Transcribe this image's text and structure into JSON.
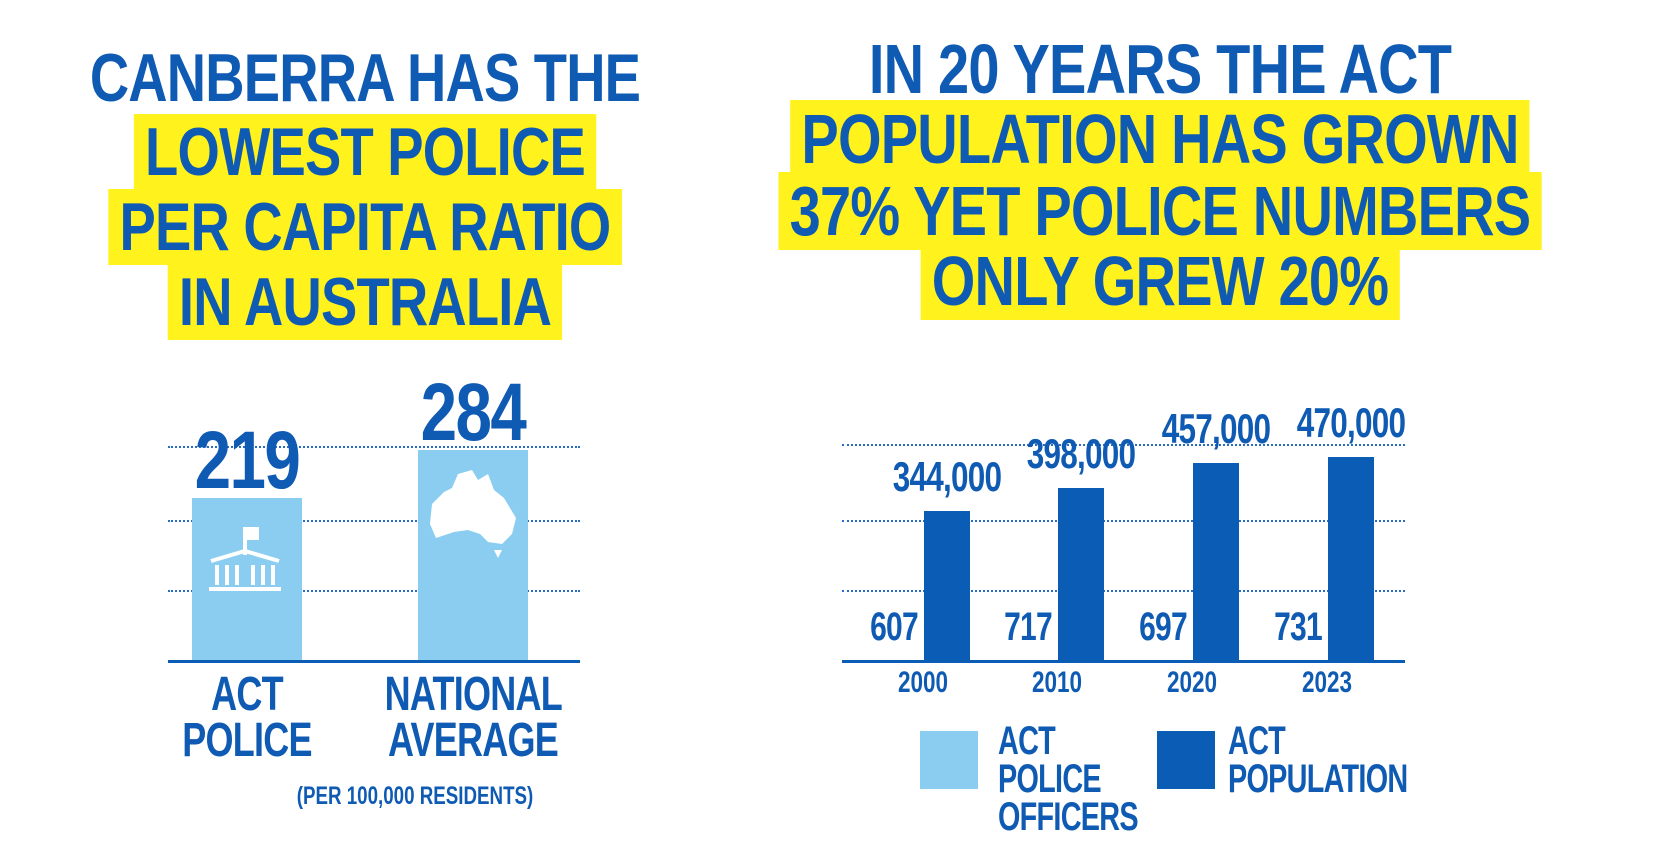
{
  "chart_data": [
    {
      "type": "bar",
      "title": [
        "CANBERRA HAS THE",
        "LOWEST POLICE",
        "PER CAPITA RATIO",
        "IN AUSTRALIA"
      ],
      "title_highlight": [
        false,
        true,
        true,
        true
      ],
      "categories": [
        "ACT POLICE",
        "NATIONAL AVERAGE"
      ],
      "values": [
        219,
        284
      ],
      "color": "#8bcdf1",
      "ylim": [
        0,
        300
      ],
      "grid": true,
      "note": "(PER 100,000 RESIDENTS)"
    },
    {
      "type": "grouped_bar",
      "title": [
        "IN 20 YEARS THE ACT",
        "POPULATION HAS GROWN",
        "37% YET POLICE NUMBERS",
        "ONLY GREW 20%"
      ],
      "title_highlight": [
        false,
        true,
        true,
        true
      ],
      "categories": [
        "2000",
        "2010",
        "2020",
        "2023"
      ],
      "series": [
        {
          "name": "ACT POLICE OFFICERS",
          "color": "#8bcdf1",
          "values": [
            607,
            717,
            697,
            731
          ]
        },
        {
          "name": "ACT POPULATION",
          "color": "#0a5cb4",
          "values": [
            344000,
            398000,
            457000,
            470000
          ],
          "value_labels": [
            "344,000",
            "398,000",
            "457,000",
            "470,000"
          ]
        }
      ],
      "ylim": [
        0,
        500000
      ],
      "grid": true
    }
  ]
}
